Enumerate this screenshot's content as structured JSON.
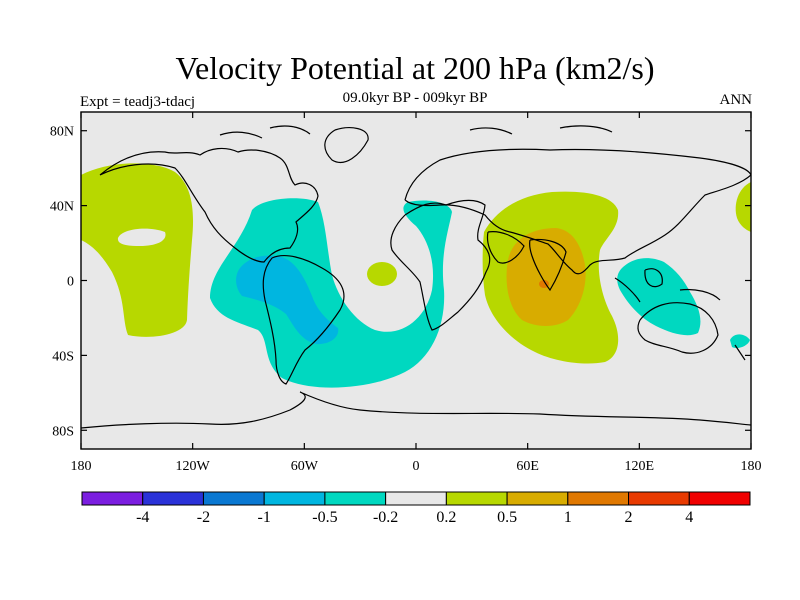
{
  "title": "Velocity Potential at 200 hPa (km2/s)",
  "subtitle": "09.0kyr BP - 009kyr BP",
  "left_label": "Expt = teadj3-tdacj",
  "right_label": "ANN",
  "x_ticks": [
    "180",
    "120W",
    "60W",
    "0",
    "60E",
    "120E",
    "180"
  ],
  "y_ticks": [
    "80N",
    "40N",
    "0",
    "40S",
    "80S"
  ],
  "colorbar": {
    "colors": [
      "#7b1ee0",
      "#2a32d8",
      "#0a78d2",
      "#00b6e0",
      "#00d8c0",
      "#e8e8e8",
      "#b7d800",
      "#d8ac00",
      "#e07800",
      "#e83a00",
      "#f00000"
    ],
    "labels": [
      "-4",
      "-2",
      "-1",
      "-0.5",
      "-0.2",
      "0.2",
      "0.5",
      "1",
      "2",
      "4"
    ]
  },
  "colors": {
    "background": "#e8e8e8",
    "neg_weak": "#00d8c0",
    "neg_mid": "#00b6e0",
    "pos_weak": "#b7d800",
    "pos_mid": "#d8ac00",
    "pos_strong": "#e07800"
  }
}
